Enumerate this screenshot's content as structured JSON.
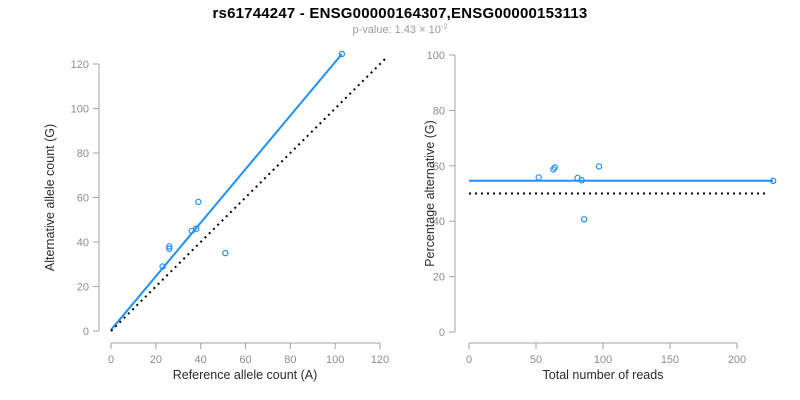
{
  "title": "rs61744247 - ENSG00000164307,ENSG00000153113",
  "subtitle": {
    "label": "p-value:",
    "mantissa": "1.43 × 10",
    "exponent": "-2"
  },
  "colors": {
    "accent": "#1E90FF",
    "identity": "#000000",
    "axis_line": "#a3a3a3",
    "tick_label": "#8c8c8c",
    "axis_title": "#2b2b2b",
    "title_text": "#000000",
    "subtitle_text": "#9b9b9b"
  },
  "chart_data": [
    {
      "type": "scatter",
      "panel": "left",
      "xlabel": "Reference allele count (A)",
      "ylabel": "Alternative allele count (G)",
      "xlim": [
        0,
        123
      ],
      "ylim": [
        0,
        125
      ],
      "xticks": [
        0,
        20,
        40,
        60,
        80,
        100,
        120
      ],
      "yticks": [
        0,
        20,
        40,
        60,
        80,
        100,
        120
      ],
      "grid": false,
      "marker": "open-circle",
      "points": [
        [
          23,
          29
        ],
        [
          26,
          37
        ],
        [
          26,
          38
        ],
        [
          36,
          45
        ],
        [
          38,
          46
        ],
        [
          39,
          58
        ],
        [
          51,
          35
        ],
        [
          103,
          124.5
        ]
      ],
      "lines": [
        {
          "name": "regression",
          "style": "solid",
          "color": "#1E90FF",
          "x1": 0,
          "y1": 0.5,
          "x2": 103,
          "y2": 124.5
        },
        {
          "name": "identity",
          "style": "dotted",
          "color": "#000000",
          "x1": 0,
          "y1": 0,
          "x2": 122.5,
          "y2": 122.5
        }
      ]
    },
    {
      "type": "scatter",
      "panel": "right",
      "xlabel": "Total number of reads",
      "ylabel": "Percentage alternative (G)",
      "xlim": [
        0,
        230
      ],
      "ylim": [
        0,
        100
      ],
      "xticks": [
        0,
        50,
        100,
        150,
        200
      ],
      "yticks": [
        0,
        20,
        40,
        60,
        80,
        100
      ],
      "grid": false,
      "marker": "open-circle",
      "points": [
        [
          52,
          55.8
        ],
        [
          63,
          58.7
        ],
        [
          64,
          59.4
        ],
        [
          81,
          55.6
        ],
        [
          84,
          54.8
        ],
        [
          86,
          40.7
        ],
        [
          97,
          59.8
        ],
        [
          227,
          54.6
        ]
      ],
      "lines": [
        {
          "name": "mean-percentage",
          "style": "solid",
          "color": "#1E90FF",
          "x1": 0,
          "y1": 54.6,
          "x2": 227,
          "y2": 54.6
        },
        {
          "name": "fifty-percent",
          "style": "dotted",
          "color": "#000000",
          "x1": 0,
          "y1": 50,
          "x2": 223,
          "y2": 50
        }
      ]
    }
  ]
}
